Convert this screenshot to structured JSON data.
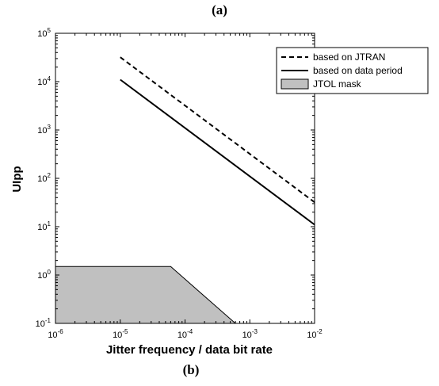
{
  "captions": {
    "top": "(a)",
    "bottom": "(b)"
  },
  "chart_data": {
    "type": "line",
    "xlabel": "Jitter frequency / data bit rate",
    "ylabel": "UIpp",
    "x_scale": "log",
    "y_scale": "log",
    "xlim": [
      1e-06,
      0.01
    ],
    "ylim": [
      0.1,
      100000
    ],
    "x_ticks": [
      {
        "base": "10",
        "exp": "-6",
        "value": 1e-06
      },
      {
        "base": "10",
        "exp": "-5",
        "value": 1e-05
      },
      {
        "base": "10",
        "exp": "-4",
        "value": 0.0001
      },
      {
        "base": "10",
        "exp": "-3",
        "value": 0.001
      },
      {
        "base": "10",
        "exp": "-2",
        "value": 0.01
      }
    ],
    "y_ticks": [
      {
        "base": "10",
        "exp": "-1",
        "value": 0.1
      },
      {
        "base": "10",
        "exp": "0",
        "value": 1
      },
      {
        "base": "10",
        "exp": "1",
        "value": 10
      },
      {
        "base": "10",
        "exp": "2",
        "value": 100
      },
      {
        "base": "10",
        "exp": "3",
        "value": 1000
      },
      {
        "base": "10",
        "exp": "4",
        "value": 10000
      },
      {
        "base": "10",
        "exp": "5",
        "value": 100000
      }
    ],
    "grid": false,
    "legend_position": "top-right",
    "series": [
      {
        "name": "based on JTRAN",
        "style": "dashed",
        "color": "#000000",
        "points": [
          [
            1e-05,
            32000
          ],
          [
            0.01,
            32
          ]
        ]
      },
      {
        "name": "based on data period",
        "style": "solid",
        "color": "#000000",
        "points": [
          [
            1e-05,
            11000
          ],
          [
            0.01,
            11
          ]
        ]
      },
      {
        "name": "JTOL mask",
        "style": "filled",
        "color": "#c0c0c0",
        "points": [
          [
            1e-06,
            1.5
          ],
          [
            6e-05,
            1.5
          ],
          [
            0.0006,
            0.1
          ],
          [
            1e-06,
            0.1
          ]
        ]
      }
    ]
  }
}
